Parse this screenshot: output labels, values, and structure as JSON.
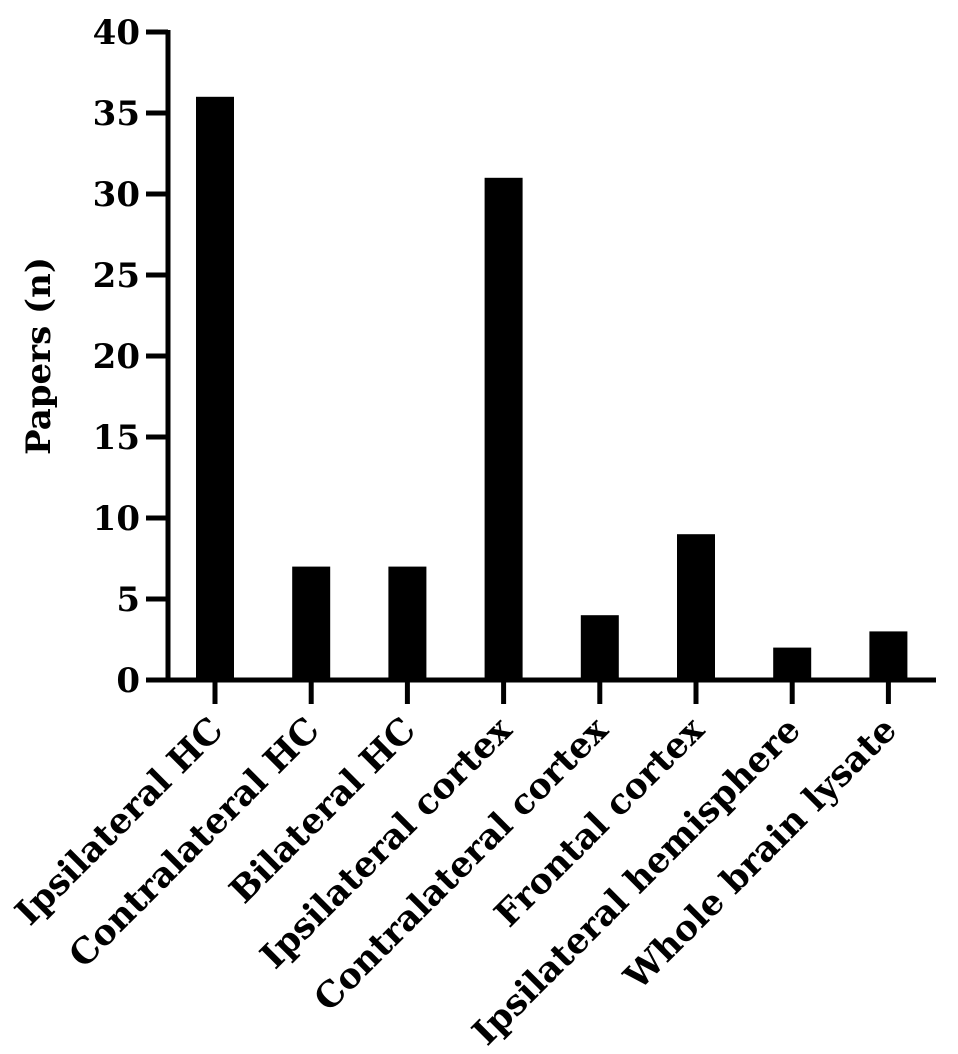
{
  "chart_data": {
    "type": "bar",
    "title": "",
    "xlabel": "",
    "ylabel": "Papers (n)",
    "ylim": [
      0,
      40
    ],
    "yticks": [
      0,
      5,
      10,
      15,
      20,
      25,
      30,
      35,
      40
    ],
    "ytick_labels": [
      "0",
      "5",
      "10",
      "15",
      "20",
      "25",
      "30",
      "35",
      "40"
    ],
    "categories": [
      "Ipsilateral HC",
      "Contralateral HC",
      "Bilateral HC",
      "Ipsilateral cortex",
      "Contralateral cortex",
      "Frontal cortex",
      "Ipsilateral hemisphere",
      "Whole brain lysate"
    ],
    "values": [
      36,
      7,
      7,
      31,
      4,
      9,
      2,
      3
    ],
    "bar_color": "#000000",
    "grid": false,
    "legend": "none"
  }
}
